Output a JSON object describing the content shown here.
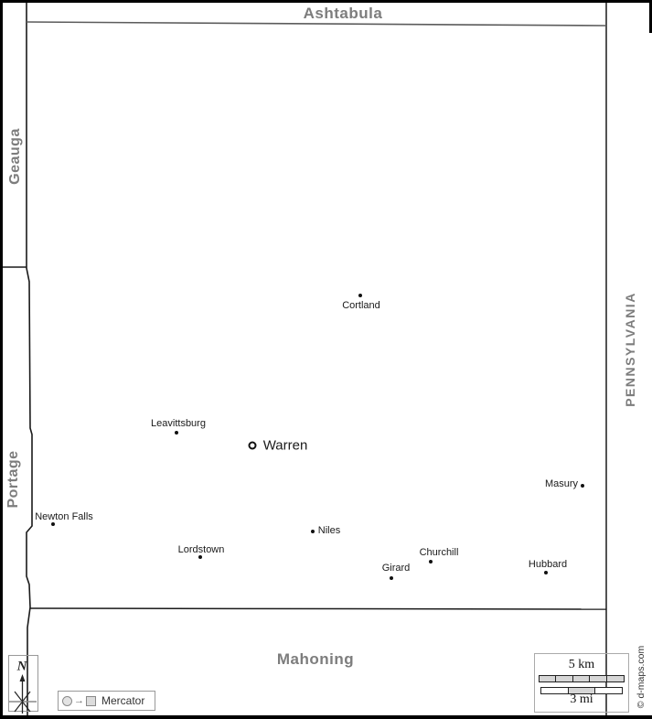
{
  "map": {
    "counties": {
      "north": "Ashtabula",
      "west_north": "Geauga",
      "west_south": "Portage",
      "east_state": "PENNSYLVANIA",
      "south": "Mahoning"
    },
    "cities": [
      {
        "name": "Cortland",
        "type": "city",
        "dot": [
          394,
          323
        ],
        "label": [
          395,
          334
        ]
      },
      {
        "name": "Leavittsburg",
        "type": "city",
        "dot": [
          193,
          473
        ],
        "label": [
          195,
          463
        ]
      },
      {
        "name": "Warren",
        "type": "seat",
        "dot": [
          276,
          487
        ],
        "label": [
          312,
          487
        ]
      },
      {
        "name": "Masury",
        "type": "city",
        "dot": [
          637,
          531
        ],
        "label": [
          614,
          529
        ]
      },
      {
        "name": "Newton Falls",
        "type": "city",
        "dot": [
          58,
          573
        ],
        "label": [
          70,
          565
        ]
      },
      {
        "name": "Lordstown",
        "type": "city",
        "dot": [
          219,
          609
        ],
        "label": [
          220,
          601
        ]
      },
      {
        "name": "Niles",
        "type": "city",
        "dot": [
          342,
          581
        ],
        "label": [
          360,
          580
        ]
      },
      {
        "name": "Churchill",
        "type": "city",
        "dot": [
          471,
          614
        ],
        "label": [
          480,
          604
        ]
      },
      {
        "name": "Girard",
        "type": "city",
        "dot": [
          428,
          632
        ],
        "label": [
          433,
          621
        ]
      },
      {
        "name": "Hubbard",
        "type": "city",
        "dot": [
          597,
          626
        ],
        "label": [
          599,
          617
        ]
      }
    ],
    "colors": {
      "county_label": "#7d7d7d",
      "border_line": "#1a1a1a",
      "city_label": "#1a1a1a"
    }
  },
  "compass": {
    "north_label": "N"
  },
  "legend": {
    "projection_label": "Mercator"
  },
  "scale": {
    "km_label": "5 km",
    "mi_label": "3 mi"
  },
  "credit": {
    "text": "© d-maps.com"
  }
}
